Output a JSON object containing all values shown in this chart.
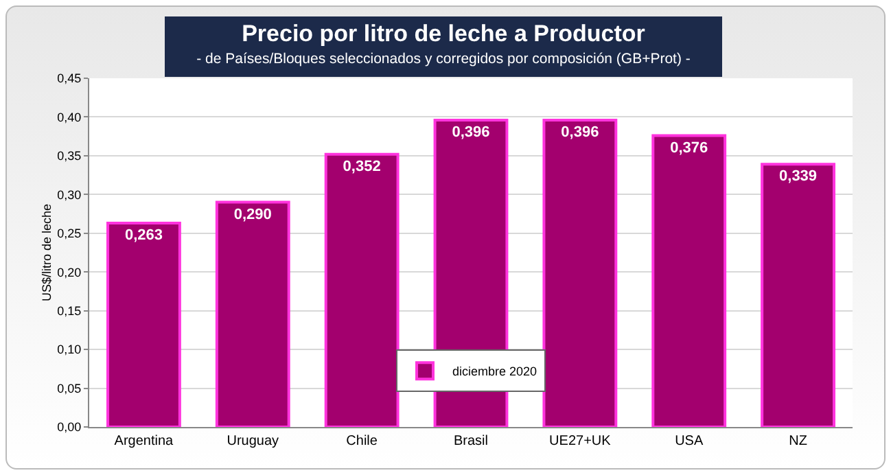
{
  "chart_data": {
    "type": "bar",
    "title": "Precio por litro de leche a Productor",
    "subtitle": "- de Países/Bloques seleccionados y corregidos por composición (GB+Prot) -",
    "ylabel": "US$/litro de leche",
    "categories": [
      "Argentina",
      "Uruguay",
      "Chile",
      "Brasil",
      "UE27+UK",
      "USA",
      "NZ"
    ],
    "series": [
      {
        "name": "diciembre 2020",
        "color": "#a3006e",
        "values": [
          0.263,
          0.29,
          0.352,
          0.396,
          0.396,
          0.376,
          0.339
        ],
        "value_labels": [
          "0,263",
          "0,290",
          "0,352",
          "0,396",
          "0,396",
          "0,376",
          "0,339"
        ]
      }
    ],
    "ylim": [
      0,
      0.45
    ],
    "yticks": [
      {
        "value": 0,
        "label": "0,00"
      },
      {
        "value": 0.05,
        "label": "0,05"
      },
      {
        "value": 0.1,
        "label": "0,10"
      },
      {
        "value": 0.15,
        "label": "0,15"
      },
      {
        "value": 0.2,
        "label": "0,20"
      },
      {
        "value": 0.25,
        "label": "0,25"
      },
      {
        "value": 0.3,
        "label": "0,30"
      },
      {
        "value": 0.35,
        "label": "0,35"
      },
      {
        "value": 0.4,
        "label": "0,40"
      },
      {
        "value": 0.45,
        "label": "0,45"
      }
    ],
    "grid": "y",
    "legend": "bottom"
  }
}
